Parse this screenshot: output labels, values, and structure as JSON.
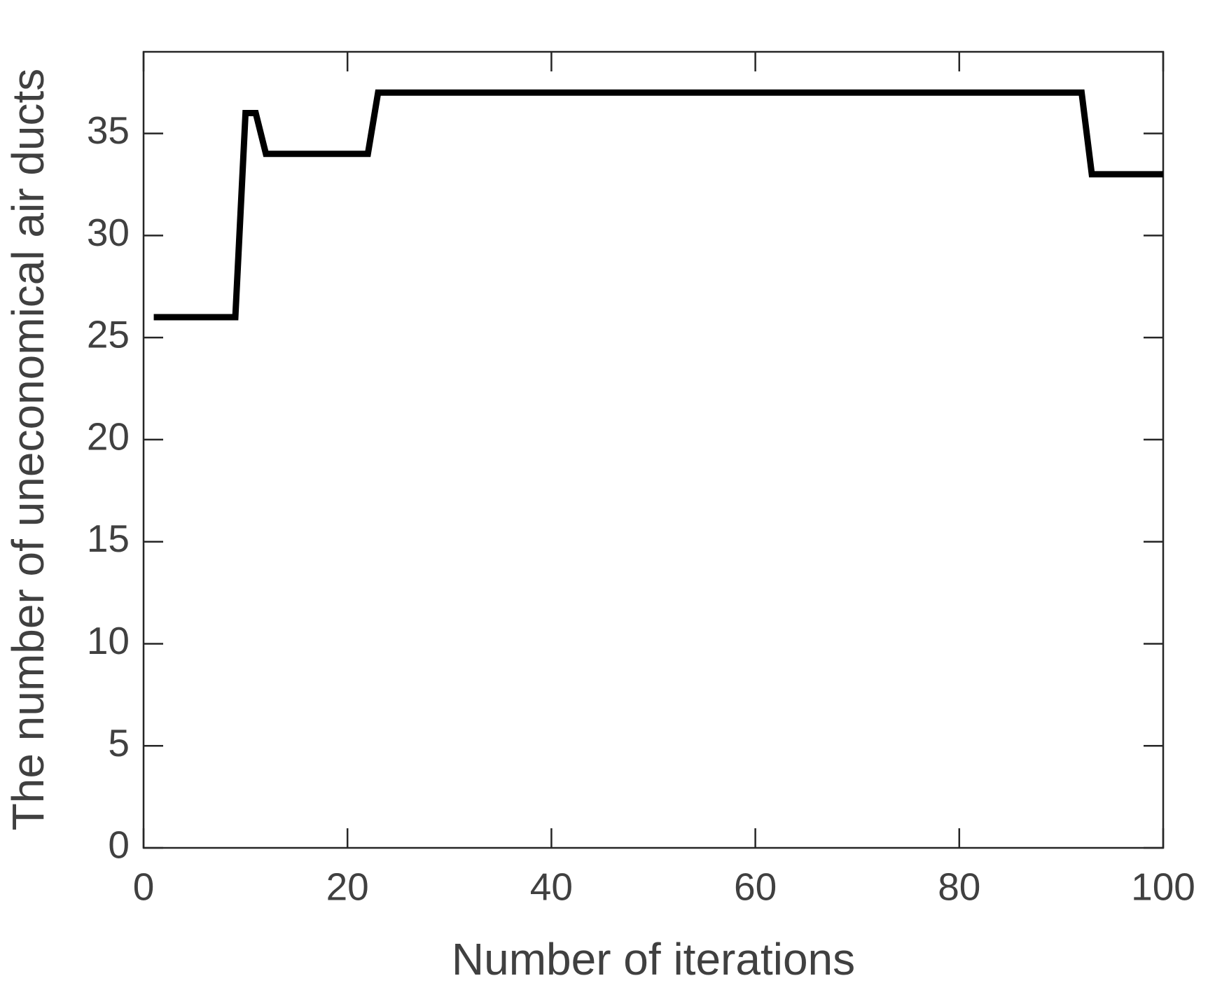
{
  "chart_data": {
    "type": "line",
    "xlabel": "Number of iterations",
    "ylabel": "The number of uneconomical air ducts",
    "x": [
      1,
      9,
      10,
      11,
      12,
      22,
      23,
      92,
      93,
      100
    ],
    "series": [
      {
        "color": "#000000",
        "values": [
          26,
          26,
          36,
          36,
          34,
          34,
          37,
          37,
          33,
          33
        ]
      }
    ],
    "xlim": [
      0,
      100
    ],
    "xticks": [
      0,
      20,
      40,
      60,
      80,
      100
    ],
    "ylim": [
      0,
      39
    ],
    "yticks": [
      0,
      5,
      10,
      15,
      20,
      25,
      30,
      35
    ],
    "grid": false,
    "box": true
  }
}
